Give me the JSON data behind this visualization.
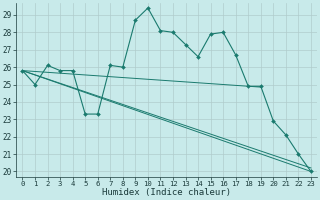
{
  "xlabel": "Humidex (Indice chaleur)",
  "background_color": "#c8eaea",
  "grid_color": "#b0cccc",
  "line_color": "#1a7a6e",
  "xlim": [
    -0.5,
    23.5
  ],
  "ylim": [
    19.7,
    29.7
  ],
  "yticks": [
    20,
    21,
    22,
    23,
    24,
    25,
    26,
    27,
    28,
    29
  ],
  "xticks": [
    0,
    1,
    2,
    3,
    4,
    5,
    6,
    7,
    8,
    9,
    10,
    11,
    12,
    13,
    14,
    15,
    16,
    17,
    18,
    19,
    20,
    21,
    22,
    23
  ],
  "curve_main": {
    "x": [
      0,
      1,
      2,
      3,
      4,
      5,
      6,
      7,
      8,
      9,
      10,
      11,
      12,
      13,
      14,
      15,
      16,
      17,
      18,
      19,
      20,
      21,
      22,
      23
    ],
    "y": [
      25.8,
      25.0,
      26.1,
      25.8,
      25.8,
      23.3,
      23.3,
      26.1,
      26.0,
      28.7,
      29.4,
      28.1,
      28.0,
      27.3,
      26.6,
      27.9,
      28.0,
      26.7,
      24.9,
      24.9,
      22.9,
      22.1,
      21.0,
      20.0
    ]
  },
  "lines": [
    {
      "x": [
        0,
        23
      ],
      "y": [
        25.8,
        20.0
      ]
    },
    {
      "x": [
        0,
        19
      ],
      "y": [
        25.8,
        24.85
      ]
    },
    {
      "x": [
        0,
        23
      ],
      "y": [
        25.8,
        20.2
      ]
    }
  ]
}
